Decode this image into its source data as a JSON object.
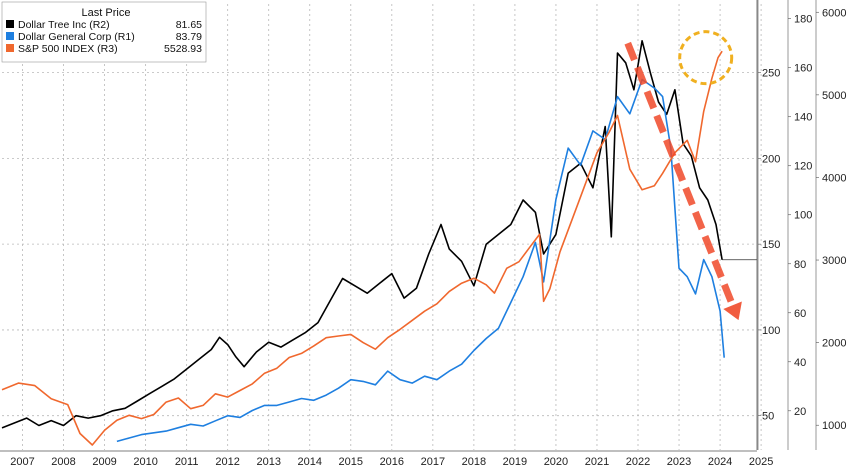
{
  "chart_data": {
    "type": "line",
    "legend": {
      "title": "Last Price",
      "placement": "top-left",
      "entries": [
        {
          "name": "Dollar Tree Inc  (R2)",
          "value": "81.65",
          "color": "#000000"
        },
        {
          "name": "Dollar General Corp  (R1)",
          "value": "83.79",
          "color": "#1e7fe0"
        },
        {
          "name": "S&P 500 INDEX  (R3)",
          "value": "5528.93",
          "color": "#f0682e"
        }
      ]
    },
    "x_ticks": [
      "2007",
      "2008",
      "2009",
      "2010",
      "2011",
      "2012",
      "2013",
      "2014",
      "2015",
      "2016",
      "2017",
      "2018",
      "2019",
      "2020",
      "2021",
      "2022",
      "2023",
      "2024",
      "2025"
    ],
    "xlim": [
      2007,
      2025.4
    ],
    "axes": {
      "R1": {
        "ticks": [
          50,
          100,
          150,
          200,
          250
        ],
        "ylim": [
          30,
          290
        ]
      },
      "R2": {
        "ticks": [
          20,
          40,
          60,
          80,
          100,
          120,
          140,
          160,
          180
        ],
        "ylim": [
          4,
          186
        ]
      },
      "R3": {
        "ticks": [
          1000,
          2000,
          3000,
          4000,
          5000,
          6000
        ],
        "ylim": [
          700,
          6100
        ]
      }
    },
    "grid": true,
    "series": [
      {
        "name": "Dollar Tree Inc  (R2)",
        "axis": "R2",
        "color": "#000000",
        "x": [
          2007.0,
          2007.3,
          2007.6,
          2007.9,
          2008.2,
          2008.5,
          2008.8,
          2009.1,
          2009.4,
          2009.7,
          2010.0,
          2010.3,
          2010.6,
          2010.9,
          2011.2,
          2011.5,
          2011.8,
          2012.1,
          2012.3,
          2012.5,
          2012.7,
          2012.9,
          2013.2,
          2013.5,
          2013.8,
          2014.1,
          2014.4,
          2014.7,
          2015.0,
          2015.3,
          2015.6,
          2015.9,
          2016.2,
          2016.5,
          2016.8,
          2017.1,
          2017.4,
          2017.7,
          2017.9,
          2018.2,
          2018.5,
          2018.8,
          2019.1,
          2019.4,
          2019.7,
          2020.0,
          2020.2,
          2020.5,
          2020.8,
          2021.1,
          2021.4,
          2021.7,
          2021.85,
          2022.0,
          2022.2,
          2022.4,
          2022.6,
          2022.8,
          2023.0,
          2023.2,
          2023.4,
          2023.6,
          2023.8,
          2024.0,
          2024.2,
          2024.4,
          2024.55
        ],
        "values": [
          13,
          15,
          17,
          14,
          16,
          14,
          18,
          17,
          18,
          20,
          21,
          24,
          27,
          30,
          33,
          37,
          41,
          45,
          50,
          47,
          42,
          38,
          44,
          48,
          46,
          49,
          52,
          56,
          65,
          74,
          71,
          68,
          72,
          76,
          66,
          70,
          84,
          96,
          86,
          81,
          71,
          88,
          92,
          96,
          106,
          101,
          84,
          92,
          117,
          121,
          111,
          136,
          91,
          166,
          162,
          151,
          171,
          158,
          146,
          141,
          151,
          129,
          124,
          111,
          106,
          96,
          81.65
        ]
      },
      {
        "name": "Dollar General Corp  (R1)",
        "axis": "R1",
        "color": "#1e7fe0",
        "x": [
          2009.8,
          2010.1,
          2010.4,
          2010.7,
          2011.0,
          2011.3,
          2011.6,
          2011.9,
          2012.2,
          2012.5,
          2012.8,
          2013.1,
          2013.4,
          2013.7,
          2014.0,
          2014.3,
          2014.6,
          2014.9,
          2015.2,
          2015.5,
          2015.8,
          2016.1,
          2016.4,
          2016.7,
          2017.0,
          2017.3,
          2017.6,
          2017.9,
          2018.2,
          2018.5,
          2018.8,
          2019.1,
          2019.4,
          2019.7,
          2020.0,
          2020.2,
          2020.5,
          2020.8,
          2021.1,
          2021.4,
          2021.7,
          2022.0,
          2022.3,
          2022.6,
          2022.9,
          2023.1,
          2023.3,
          2023.5,
          2023.7,
          2023.9,
          2024.1,
          2024.3,
          2024.5,
          2024.6
        ],
        "values": [
          35,
          37,
          39,
          40,
          41,
          43,
          45,
          44,
          47,
          50,
          49,
          53,
          56,
          56,
          58,
          60,
          59,
          62,
          66,
          71,
          70,
          68,
          76,
          71,
          69,
          73,
          71,
          76,
          80,
          88,
          95,
          101,
          116,
          131,
          151,
          128,
          176,
          206,
          196,
          216,
          211,
          236,
          226,
          246,
          241,
          236,
          206,
          136,
          131,
          121,
          141,
          131,
          111,
          83.79
        ]
      },
      {
        "name": "S&P 500 INDEX  (R3)",
        "axis": "R3",
        "color": "#f0682e",
        "x": [
          2007.0,
          2007.4,
          2007.8,
          2008.2,
          2008.6,
          2008.9,
          2009.2,
          2009.5,
          2009.8,
          2010.1,
          2010.4,
          2010.7,
          2011.0,
          2011.3,
          2011.6,
          2011.9,
          2012.2,
          2012.5,
          2012.8,
          2013.1,
          2013.4,
          2013.7,
          2014.0,
          2014.3,
          2014.6,
          2014.9,
          2015.2,
          2015.5,
          2015.8,
          2016.1,
          2016.4,
          2016.7,
          2017.0,
          2017.3,
          2017.6,
          2017.9,
          2018.2,
          2018.5,
          2018.8,
          2019.0,
          2019.3,
          2019.6,
          2019.9,
          2020.1,
          2020.2,
          2020.35,
          2020.6,
          2020.9,
          2021.2,
          2021.5,
          2021.8,
          2022.0,
          2022.3,
          2022.6,
          2022.9,
          2023.1,
          2023.4,
          2023.7,
          2023.9,
          2024.1,
          2024.3,
          2024.45,
          2024.55
        ],
        "values": [
          1430,
          1510,
          1480,
          1320,
          1250,
          900,
          760,
          940,
          1060,
          1120,
          1080,
          1130,
          1280,
          1330,
          1200,
          1240,
          1380,
          1340,
          1420,
          1500,
          1630,
          1690,
          1820,
          1870,
          1960,
          2060,
          2080,
          2100,
          2000,
          1920,
          2060,
          2160,
          2270,
          2380,
          2470,
          2620,
          2720,
          2780,
          2700,
          2600,
          2900,
          2980,
          3180,
          3310,
          2500,
          2650,
          3100,
          3500,
          3900,
          4300,
          4550,
          4750,
          4100,
          3850,
          3900,
          4050,
          4300,
          4450,
          4190,
          4800,
          5200,
          5450,
          5528.93
        ]
      }
    ],
    "annotations": [
      {
        "type": "dashed-arrow",
        "color": "#f04a2a",
        "from": {
          "x": 2022.25,
          "series_axis": "R2",
          "value": 170
        },
        "to": {
          "x": 2024.95,
          "series_axis": "R2",
          "value": 57
        }
      },
      {
        "type": "dashed-circle",
        "color": "#f0b020",
        "center": {
          "x": 2024.15,
          "axis": "R3",
          "value": 5450
        }
      },
      {
        "type": "last-value-line",
        "axis": "R2",
        "value": 81.65
      }
    ]
  }
}
